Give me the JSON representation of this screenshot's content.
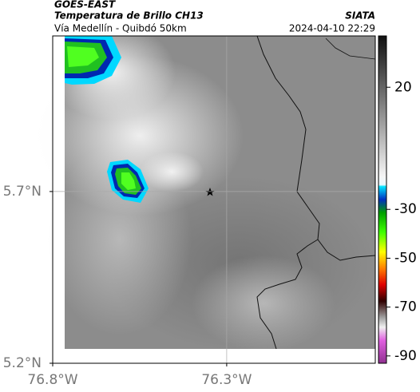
{
  "header": {
    "title": "GOES-EAST",
    "subtitle": "Temperatura de Brillo CH13",
    "source": "SIATA",
    "route": "Vía Medellín - Quibdó 50km",
    "timestamp": "2024-04-10 22:29"
  },
  "map": {
    "lonlim": [
      -76.8,
      -75.873
    ],
    "latlim": [
      5.2,
      6.153
    ],
    "lonticks": [
      {
        "value": -76.8,
        "label": "76.8°W"
      },
      {
        "value": -76.3,
        "label": "76.3°W"
      }
    ],
    "latticks": [
      {
        "value": 5.7,
        "label": "5.7°N"
      },
      {
        "value": 5.2,
        "label": "5.2°N"
      }
    ]
  },
  "colorbar": {
    "clim": [
      -93,
      41
    ],
    "ticks": [
      20,
      -30,
      -50,
      -70,
      -90
    ]
  }
}
